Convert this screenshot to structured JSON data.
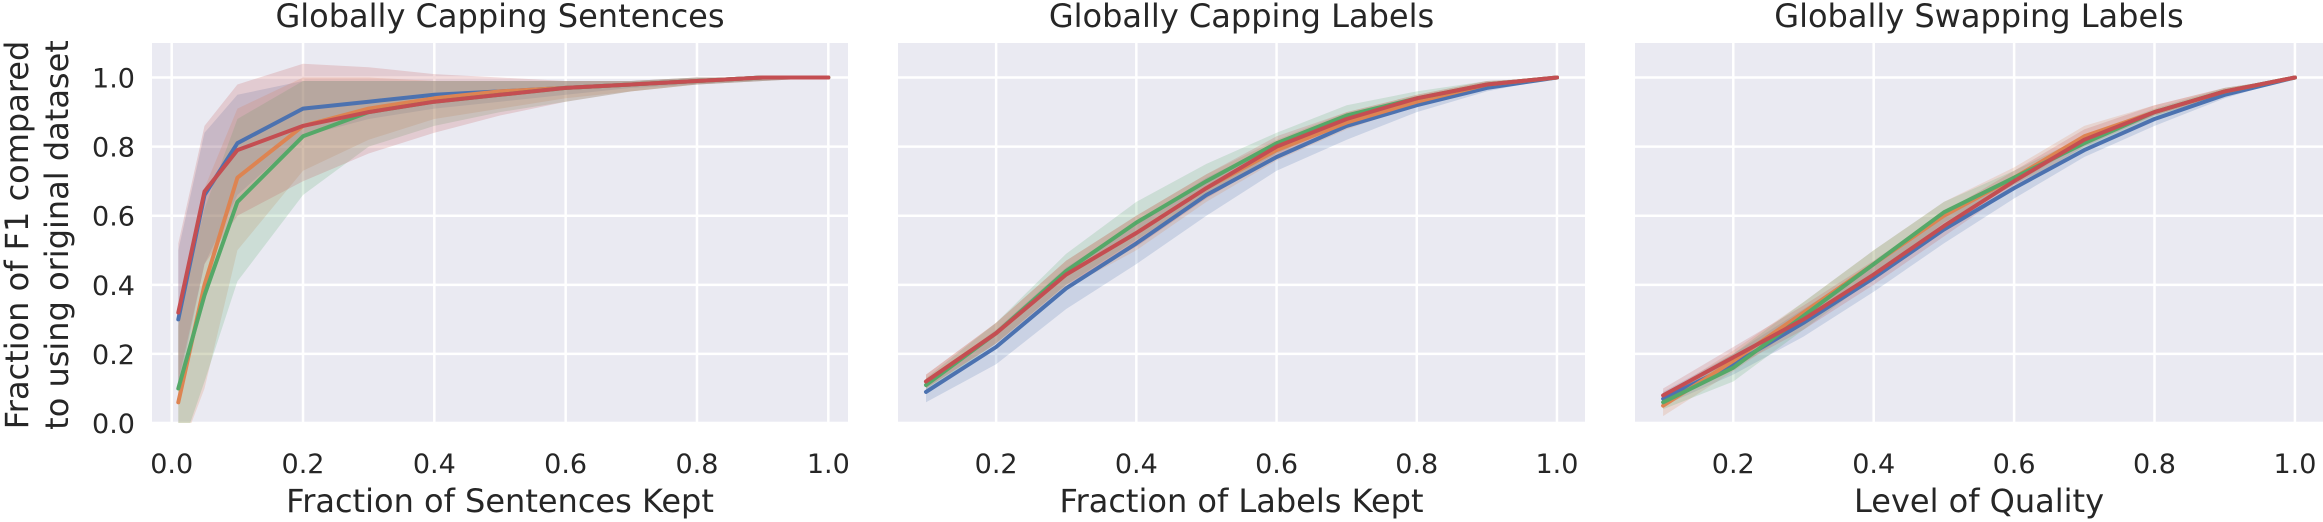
{
  "ylabel_lines": [
    "Fraction of F1 compared",
    "to using original dataset"
  ],
  "colors": {
    "panel_bg": "#eaeaf2",
    "grid": "#ffffff",
    "series": [
      "#4c72b0",
      "#dd8452",
      "#55a868",
      "#c44e52"
    ]
  },
  "chart_data": [
    {
      "type": "line",
      "title": "Globally Capping Sentences",
      "xlabel": "Fraction of Sentences Kept",
      "ylabel": "Fraction of F1 compared to using original dataset",
      "xlim": [
        -0.03,
        1.03
      ],
      "ylim": [
        0.0,
        1.1
      ],
      "xticks": [
        "0.0",
        "0.2",
        "0.4",
        "0.6",
        "0.8",
        "1.0"
      ],
      "yticks": [
        "0.0",
        "0.2",
        "0.4",
        "0.6",
        "0.8",
        "1.0"
      ],
      "grid": true,
      "x": [
        0.01,
        0.05,
        0.1,
        0.2,
        0.3,
        0.4,
        0.5,
        0.6,
        0.7,
        0.8,
        0.9,
        1.0
      ],
      "series": [
        {
          "color": "#4c72b0",
          "values": [
            0.3,
            0.66,
            0.81,
            0.91,
            0.93,
            0.95,
            0.96,
            0.97,
            0.98,
            0.99,
            1.0,
            1.0
          ],
          "lower": [
            0.1,
            0.46,
            0.66,
            0.83,
            0.88,
            0.91,
            0.93,
            0.95,
            0.97,
            0.98,
            0.99,
            1.0
          ],
          "upper": [
            0.5,
            0.84,
            0.95,
            0.99,
            0.99,
            0.99,
            0.99,
            0.99,
            0.99,
            1.0,
            1.0,
            1.0
          ]
        },
        {
          "color": "#dd8452",
          "values": [
            0.06,
            0.4,
            0.71,
            0.86,
            0.91,
            0.94,
            0.96,
            0.97,
            0.98,
            0.99,
            1.0,
            1.0
          ],
          "lower": [
            -0.1,
            0.1,
            0.5,
            0.73,
            0.82,
            0.88,
            0.91,
            0.94,
            0.96,
            0.98,
            0.99,
            1.0
          ],
          "upper": [
            0.28,
            0.68,
            0.91,
            1.0,
            1.0,
            0.99,
            0.99,
            0.99,
            0.99,
            1.0,
            1.0,
            1.0
          ]
        },
        {
          "color": "#55a868",
          "values": [
            0.1,
            0.37,
            0.64,
            0.83,
            0.9,
            0.93,
            0.95,
            0.97,
            0.98,
            0.99,
            1.0,
            1.0
          ],
          "lower": [
            -0.1,
            0.12,
            0.41,
            0.66,
            0.8,
            0.86,
            0.9,
            0.93,
            0.96,
            0.98,
            0.99,
            1.0
          ],
          "upper": [
            0.3,
            0.62,
            0.88,
            0.99,
            0.99,
            0.99,
            0.99,
            0.99,
            0.99,
            1.0,
            1.0,
            1.0
          ]
        },
        {
          "color": "#c44e52",
          "values": [
            0.32,
            0.67,
            0.79,
            0.86,
            0.9,
            0.93,
            0.95,
            0.97,
            0.98,
            0.99,
            1.0,
            1.0
          ],
          "lower": [
            0.12,
            0.46,
            0.6,
            0.7,
            0.78,
            0.84,
            0.89,
            0.93,
            0.96,
            0.98,
            0.99,
            1.0
          ],
          "upper": [
            0.52,
            0.86,
            0.98,
            1.04,
            1.03,
            1.01,
            1.0,
            0.99,
            0.99,
            1.0,
            1.0,
            1.0
          ]
        }
      ]
    },
    {
      "type": "line",
      "title": "Globally Capping Labels",
      "xlabel": "Fraction of Labels Kept",
      "xlim": [
        0.06,
        1.04
      ],
      "ylim": [
        0.0,
        1.1
      ],
      "xticks": [
        "0.2",
        "0.4",
        "0.6",
        "0.8",
        "1.0"
      ],
      "grid": true,
      "x": [
        0.1,
        0.2,
        0.3,
        0.4,
        0.5,
        0.6,
        0.7,
        0.8,
        0.9,
        1.0
      ],
      "series": [
        {
          "color": "#4c72b0",
          "values": [
            0.09,
            0.22,
            0.39,
            0.52,
            0.66,
            0.77,
            0.86,
            0.92,
            0.97,
            1.0
          ],
          "lower": [
            0.06,
            0.17,
            0.33,
            0.46,
            0.6,
            0.73,
            0.82,
            0.9,
            0.96,
            1.0
          ],
          "upper": [
            0.12,
            0.27,
            0.45,
            0.58,
            0.71,
            0.81,
            0.89,
            0.94,
            0.98,
            1.0
          ]
        },
        {
          "color": "#dd8452",
          "values": [
            0.12,
            0.26,
            0.43,
            0.55,
            0.68,
            0.79,
            0.87,
            0.93,
            0.98,
            1.0
          ],
          "lower": [
            0.1,
            0.23,
            0.39,
            0.5,
            0.64,
            0.76,
            0.85,
            0.92,
            0.97,
            1.0
          ],
          "upper": [
            0.14,
            0.29,
            0.47,
            0.6,
            0.72,
            0.82,
            0.9,
            0.95,
            0.99,
            1.0
          ]
        },
        {
          "color": "#55a868",
          "values": [
            0.11,
            0.26,
            0.44,
            0.58,
            0.7,
            0.81,
            0.89,
            0.94,
            0.98,
            1.0
          ],
          "lower": [
            0.09,
            0.23,
            0.4,
            0.53,
            0.66,
            0.78,
            0.87,
            0.93,
            0.97,
            1.0
          ],
          "upper": [
            0.13,
            0.29,
            0.49,
            0.64,
            0.75,
            0.84,
            0.92,
            0.96,
            0.99,
            1.0
          ]
        },
        {
          "color": "#c44e52",
          "values": [
            0.12,
            0.26,
            0.43,
            0.55,
            0.68,
            0.8,
            0.88,
            0.94,
            0.98,
            1.0
          ],
          "lower": [
            0.1,
            0.23,
            0.4,
            0.51,
            0.65,
            0.77,
            0.86,
            0.93,
            0.97,
            1.0
          ],
          "upper": [
            0.14,
            0.29,
            0.47,
            0.6,
            0.72,
            0.83,
            0.9,
            0.95,
            0.99,
            1.0
          ]
        }
      ]
    },
    {
      "type": "line",
      "title": "Globally Swapping Labels",
      "xlabel": "Level of Quality",
      "xlim": [
        0.06,
        1.04
      ],
      "ylim": [
        0.0,
        1.1
      ],
      "xticks": [
        "0.2",
        "0.4",
        "0.6",
        "0.8",
        "1.0"
      ],
      "grid": true,
      "x": [
        0.1,
        0.2,
        0.3,
        0.4,
        0.5,
        0.6,
        0.7,
        0.8,
        0.9,
        1.0
      ],
      "series": [
        {
          "color": "#4c72b0",
          "values": [
            0.07,
            0.17,
            0.29,
            0.42,
            0.56,
            0.68,
            0.79,
            0.88,
            0.95,
            1.0
          ],
          "lower": [
            0.05,
            0.14,
            0.25,
            0.38,
            0.52,
            0.65,
            0.77,
            0.86,
            0.94,
            1.0
          ],
          "upper": [
            0.09,
            0.2,
            0.33,
            0.46,
            0.6,
            0.71,
            0.81,
            0.9,
            0.96,
            1.0
          ]
        },
        {
          "color": "#dd8452",
          "values": [
            0.05,
            0.18,
            0.32,
            0.46,
            0.6,
            0.71,
            0.83,
            0.9,
            0.96,
            1.0
          ],
          "lower": [
            0.02,
            0.15,
            0.29,
            0.43,
            0.57,
            0.69,
            0.81,
            0.89,
            0.95,
            1.0
          ],
          "upper": [
            0.08,
            0.21,
            0.35,
            0.5,
            0.64,
            0.74,
            0.86,
            0.92,
            0.97,
            1.0
          ]
        },
        {
          "color": "#55a868",
          "values": [
            0.06,
            0.16,
            0.31,
            0.46,
            0.61,
            0.71,
            0.81,
            0.9,
            0.96,
            1.0
          ],
          "lower": [
            0.04,
            0.12,
            0.27,
            0.42,
            0.58,
            0.69,
            0.79,
            0.88,
            0.95,
            1.0
          ],
          "upper": [
            0.08,
            0.2,
            0.35,
            0.5,
            0.64,
            0.73,
            0.83,
            0.91,
            0.97,
            1.0
          ]
        },
        {
          "color": "#c44e52",
          "values": [
            0.08,
            0.19,
            0.3,
            0.43,
            0.57,
            0.7,
            0.82,
            0.9,
            0.96,
            1.0
          ],
          "lower": [
            0.06,
            0.16,
            0.27,
            0.4,
            0.54,
            0.68,
            0.8,
            0.89,
            0.95,
            1.0
          ],
          "upper": [
            0.1,
            0.22,
            0.34,
            0.47,
            0.61,
            0.73,
            0.85,
            0.92,
            0.97,
            1.0
          ]
        }
      ]
    }
  ]
}
